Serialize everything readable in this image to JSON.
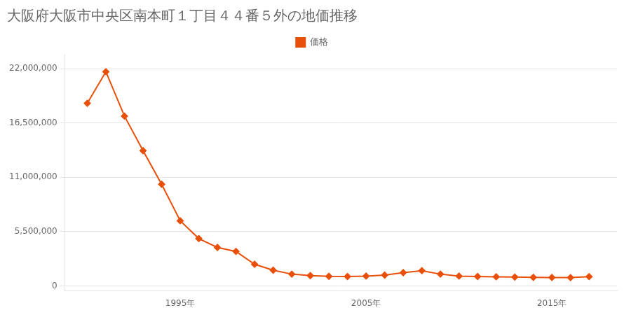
{
  "chart_data": {
    "type": "line",
    "title": "大阪府大阪市中央区南本町１丁目４４番５外の地価推移",
    "x": [
      1990,
      1991,
      1992,
      1993,
      1994,
      1995,
      1996,
      1997,
      1998,
      1999,
      2000,
      2001,
      2002,
      2003,
      2004,
      2005,
      2006,
      2007,
      2008,
      2009,
      2010,
      2011,
      2012,
      2013,
      2014,
      2015,
      2016,
      2017
    ],
    "series": [
      {
        "name": "価格",
        "color": "#e8500a",
        "marker": "diamond",
        "values": [
          18500000,
          21700000,
          17200000,
          13700000,
          10300000,
          6600000,
          4800000,
          3900000,
          3500000,
          2200000,
          1600000,
          1200000,
          1050000,
          980000,
          960000,
          1000000,
          1100000,
          1350000,
          1550000,
          1200000,
          1000000,
          960000,
          930000,
          900000,
          870000,
          860000,
          850000,
          950000
        ]
      }
    ],
    "xlim": [
      1988.8,
      2018.5
    ],
    "xticks": [
      {
        "value": 1995,
        "label": "1995年"
      },
      {
        "value": 2005,
        "label": "2005年"
      },
      {
        "value": 2015,
        "label": "2015年"
      }
    ],
    "ylim": [
      -500000,
      23500000
    ],
    "yticks": [
      0,
      {
        "value": 5500000,
        "label": "5,500,000"
      },
      {
        "value": 11000000,
        "label": "11,000,000"
      },
      {
        "value": 16500000,
        "label": "16,500,000"
      },
      {
        "value": 22000000,
        "label": "22,000,000"
      }
    ],
    "grid": "y",
    "legend": "top"
  }
}
